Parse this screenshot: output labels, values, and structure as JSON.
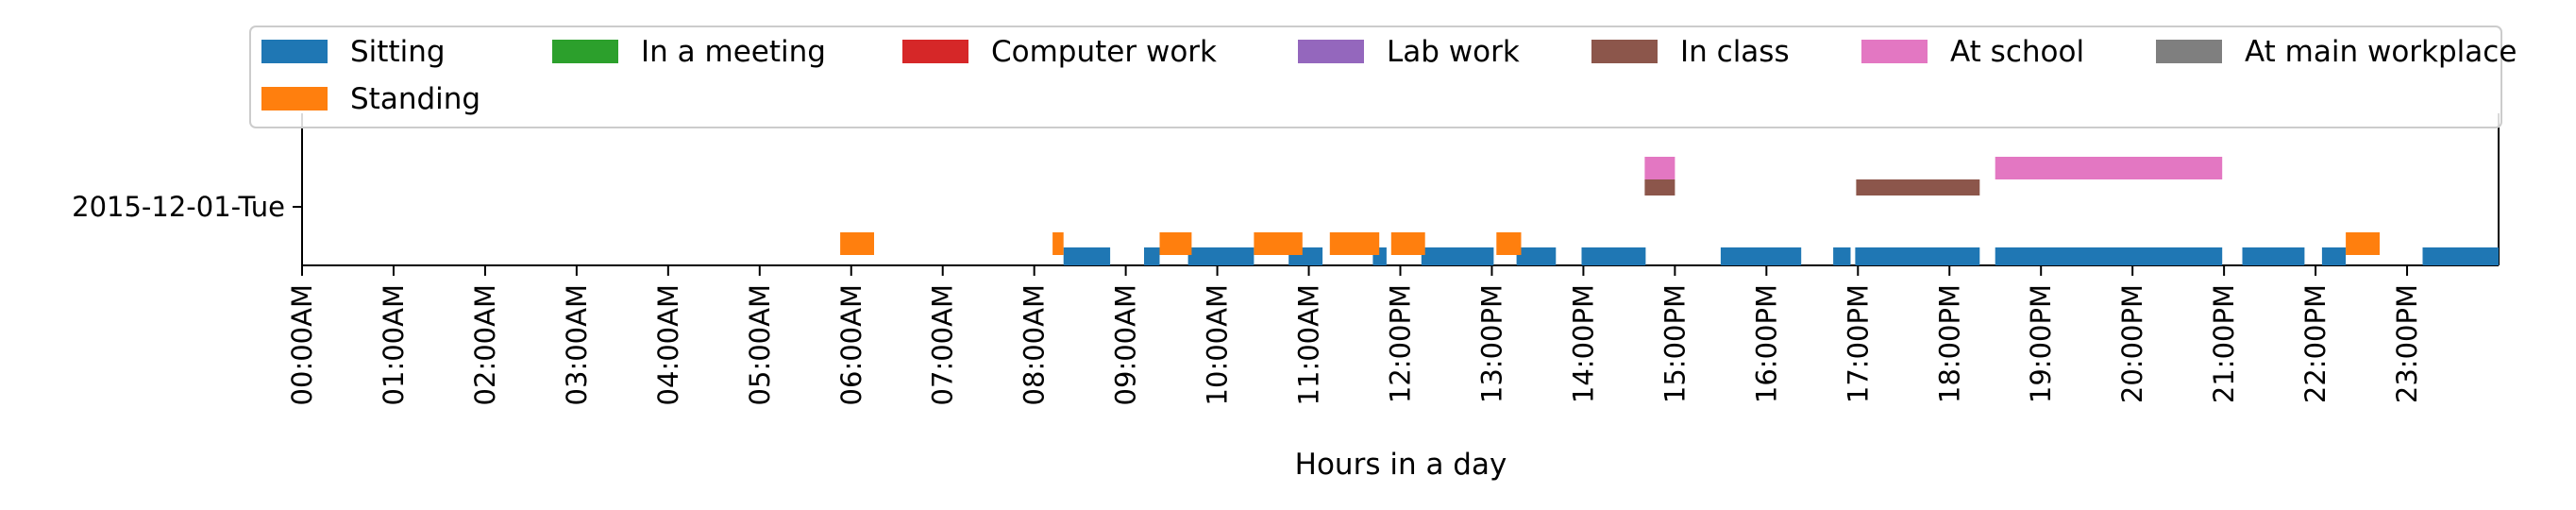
{
  "chart_data": {
    "type": "timeline",
    "xlabel": "Hours in a day",
    "xlim": [
      0,
      24
    ],
    "rows": [
      "2015-12-01-Tue"
    ],
    "x_ticks": [
      {
        "hour": 0,
        "label": "00:00AM"
      },
      {
        "hour": 1,
        "label": "01:00AM"
      },
      {
        "hour": 2,
        "label": "02:00AM"
      },
      {
        "hour": 3,
        "label": "03:00AM"
      },
      {
        "hour": 4,
        "label": "04:00AM"
      },
      {
        "hour": 5,
        "label": "05:00AM"
      },
      {
        "hour": 6,
        "label": "06:00AM"
      },
      {
        "hour": 7,
        "label": "07:00AM"
      },
      {
        "hour": 8,
        "label": "08:00AM"
      },
      {
        "hour": 9,
        "label": "09:00AM"
      },
      {
        "hour": 10,
        "label": "10:00AM"
      },
      {
        "hour": 11,
        "label": "11:00AM"
      },
      {
        "hour": 12,
        "label": "12:00PM"
      },
      {
        "hour": 13,
        "label": "13:00PM"
      },
      {
        "hour": 14,
        "label": "14:00PM"
      },
      {
        "hour": 15,
        "label": "15:00PM"
      },
      {
        "hour": 16,
        "label": "16:00PM"
      },
      {
        "hour": 17,
        "label": "17:00PM"
      },
      {
        "hour": 18,
        "label": "18:00PM"
      },
      {
        "hour": 19,
        "label": "19:00PM"
      },
      {
        "hour": 20,
        "label": "20:00PM"
      },
      {
        "hour": 21,
        "label": "21:00PM"
      },
      {
        "hour": 22,
        "label": "22:00PM"
      },
      {
        "hour": 23,
        "label": "23:00PM"
      }
    ],
    "legend_position": "top",
    "series": [
      {
        "name": "Sitting",
        "color": "#1f77b4",
        "intervals": [
          [
            8.32,
            8.83
          ],
          [
            9.2,
            9.37
          ],
          [
            9.68,
            10.4
          ],
          [
            10.78,
            11.15
          ],
          [
            11.7,
            11.85
          ],
          [
            12.23,
            13.02
          ],
          [
            13.27,
            13.7
          ],
          [
            13.98,
            14.68
          ],
          [
            15.5,
            16.38
          ],
          [
            16.73,
            16.92
          ],
          [
            16.97,
            18.33
          ],
          [
            18.5,
            20.98
          ],
          [
            21.2,
            21.88
          ],
          [
            22.07,
            22.33
          ],
          [
            23.17,
            24.0
          ]
        ]
      },
      {
        "name": "Standing",
        "color": "#ff7f0e",
        "intervals": [
          [
            5.88,
            6.25
          ],
          [
            8.2,
            8.32
          ],
          [
            9.37,
            9.72
          ],
          [
            10.4,
            10.93
          ],
          [
            11.23,
            11.77
          ],
          [
            11.9,
            12.27
          ],
          [
            13.05,
            13.32
          ],
          [
            22.33,
            22.7
          ]
        ]
      },
      {
        "name": "In a meeting",
        "color": "#2ca02c",
        "intervals": []
      },
      {
        "name": "Computer work",
        "color": "#d62728",
        "intervals": []
      },
      {
        "name": "Lab work",
        "color": "#9467bd",
        "intervals": []
      },
      {
        "name": "In class",
        "color": "#8c564b",
        "intervals": [
          [
            14.67,
            15.0
          ],
          [
            16.98,
            18.33
          ]
        ]
      },
      {
        "name": "At school",
        "color": "#e377c2",
        "intervals": [
          [
            14.67,
            15.0
          ],
          [
            18.5,
            20.98
          ]
        ]
      },
      {
        "name": "At main workplace",
        "color": "#7f7f7f",
        "intervals": []
      }
    ]
  }
}
